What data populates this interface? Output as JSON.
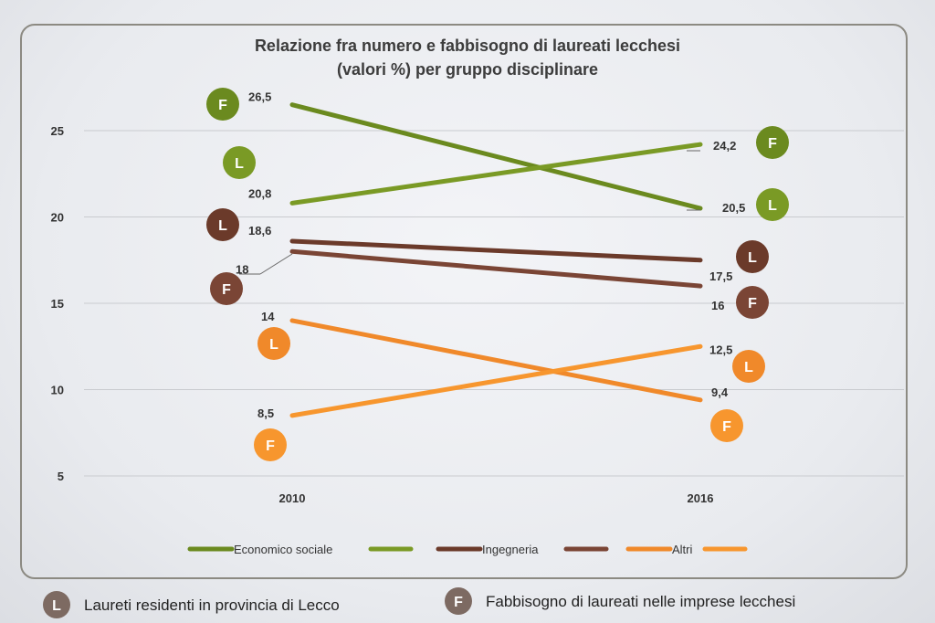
{
  "chart_data": {
    "type": "line",
    "title": "Relazione fra numero e fabbisogno di laureati lecchesi",
    "subtitle": "(valori %) per gruppo disciplinare",
    "categories": [
      "2010",
      "2016"
    ],
    "ylim": [
      5,
      27
    ],
    "yticks": [
      "25",
      "20",
      "15",
      "10",
      "5"
    ],
    "grid": true,
    "legend_position": "bottom",
    "series": [
      {
        "name": "Economico sociale",
        "marker": "F",
        "values": [
          26.5,
          20.5
        ],
        "labels": [
          "26,5",
          "20,5"
        ],
        "color": "#6b8a1f"
      },
      {
        "name": "",
        "marker": "L",
        "values": [
          20.8,
          24.2
        ],
        "labels": [
          "20,8",
          "24,2"
        ],
        "color": "#7a9a25"
      },
      {
        "name": "Ingegneria",
        "marker": "L",
        "values": [
          18.6,
          17.5
        ],
        "labels": [
          "18,6",
          "17,5"
        ],
        "color": "#6b3a2a"
      },
      {
        "name": "",
        "marker": "F",
        "values": [
          18,
          16
        ],
        "labels": [
          "18",
          "16"
        ],
        "color": "#7a4535"
      },
      {
        "name": "Altri",
        "marker": "L",
        "values": [
          14,
          9.4
        ],
        "labels": [
          "14",
          "9,4"
        ],
        "color": "#f0892a"
      },
      {
        "name": "",
        "marker": "F",
        "values": [
          8.5,
          12.5
        ],
        "labels": [
          "8,5",
          "12,5"
        ],
        "color": "#f7962e"
      }
    ]
  },
  "legend_items": [
    {
      "label": "Economico sociale",
      "color": "#6b8a1f"
    },
    {
      "label": "",
      "color": "#7a9a25"
    },
    {
      "label": "Ingegneria",
      "color": "#6b3a2a"
    },
    {
      "label": "",
      "color": "#7a4535"
    },
    {
      "label": "Altri",
      "color": "#f0892a"
    },
    {
      "label": "",
      "color": "#f7962e"
    }
  ],
  "footer": {
    "l_letter": "L",
    "l_text": "Laureti residenti in provincia di Lecco",
    "f_letter": "F",
    "f_text": "Fabbisogno di laureati nelle imprese lecchesi",
    "badge_color": "#7d6a62"
  }
}
